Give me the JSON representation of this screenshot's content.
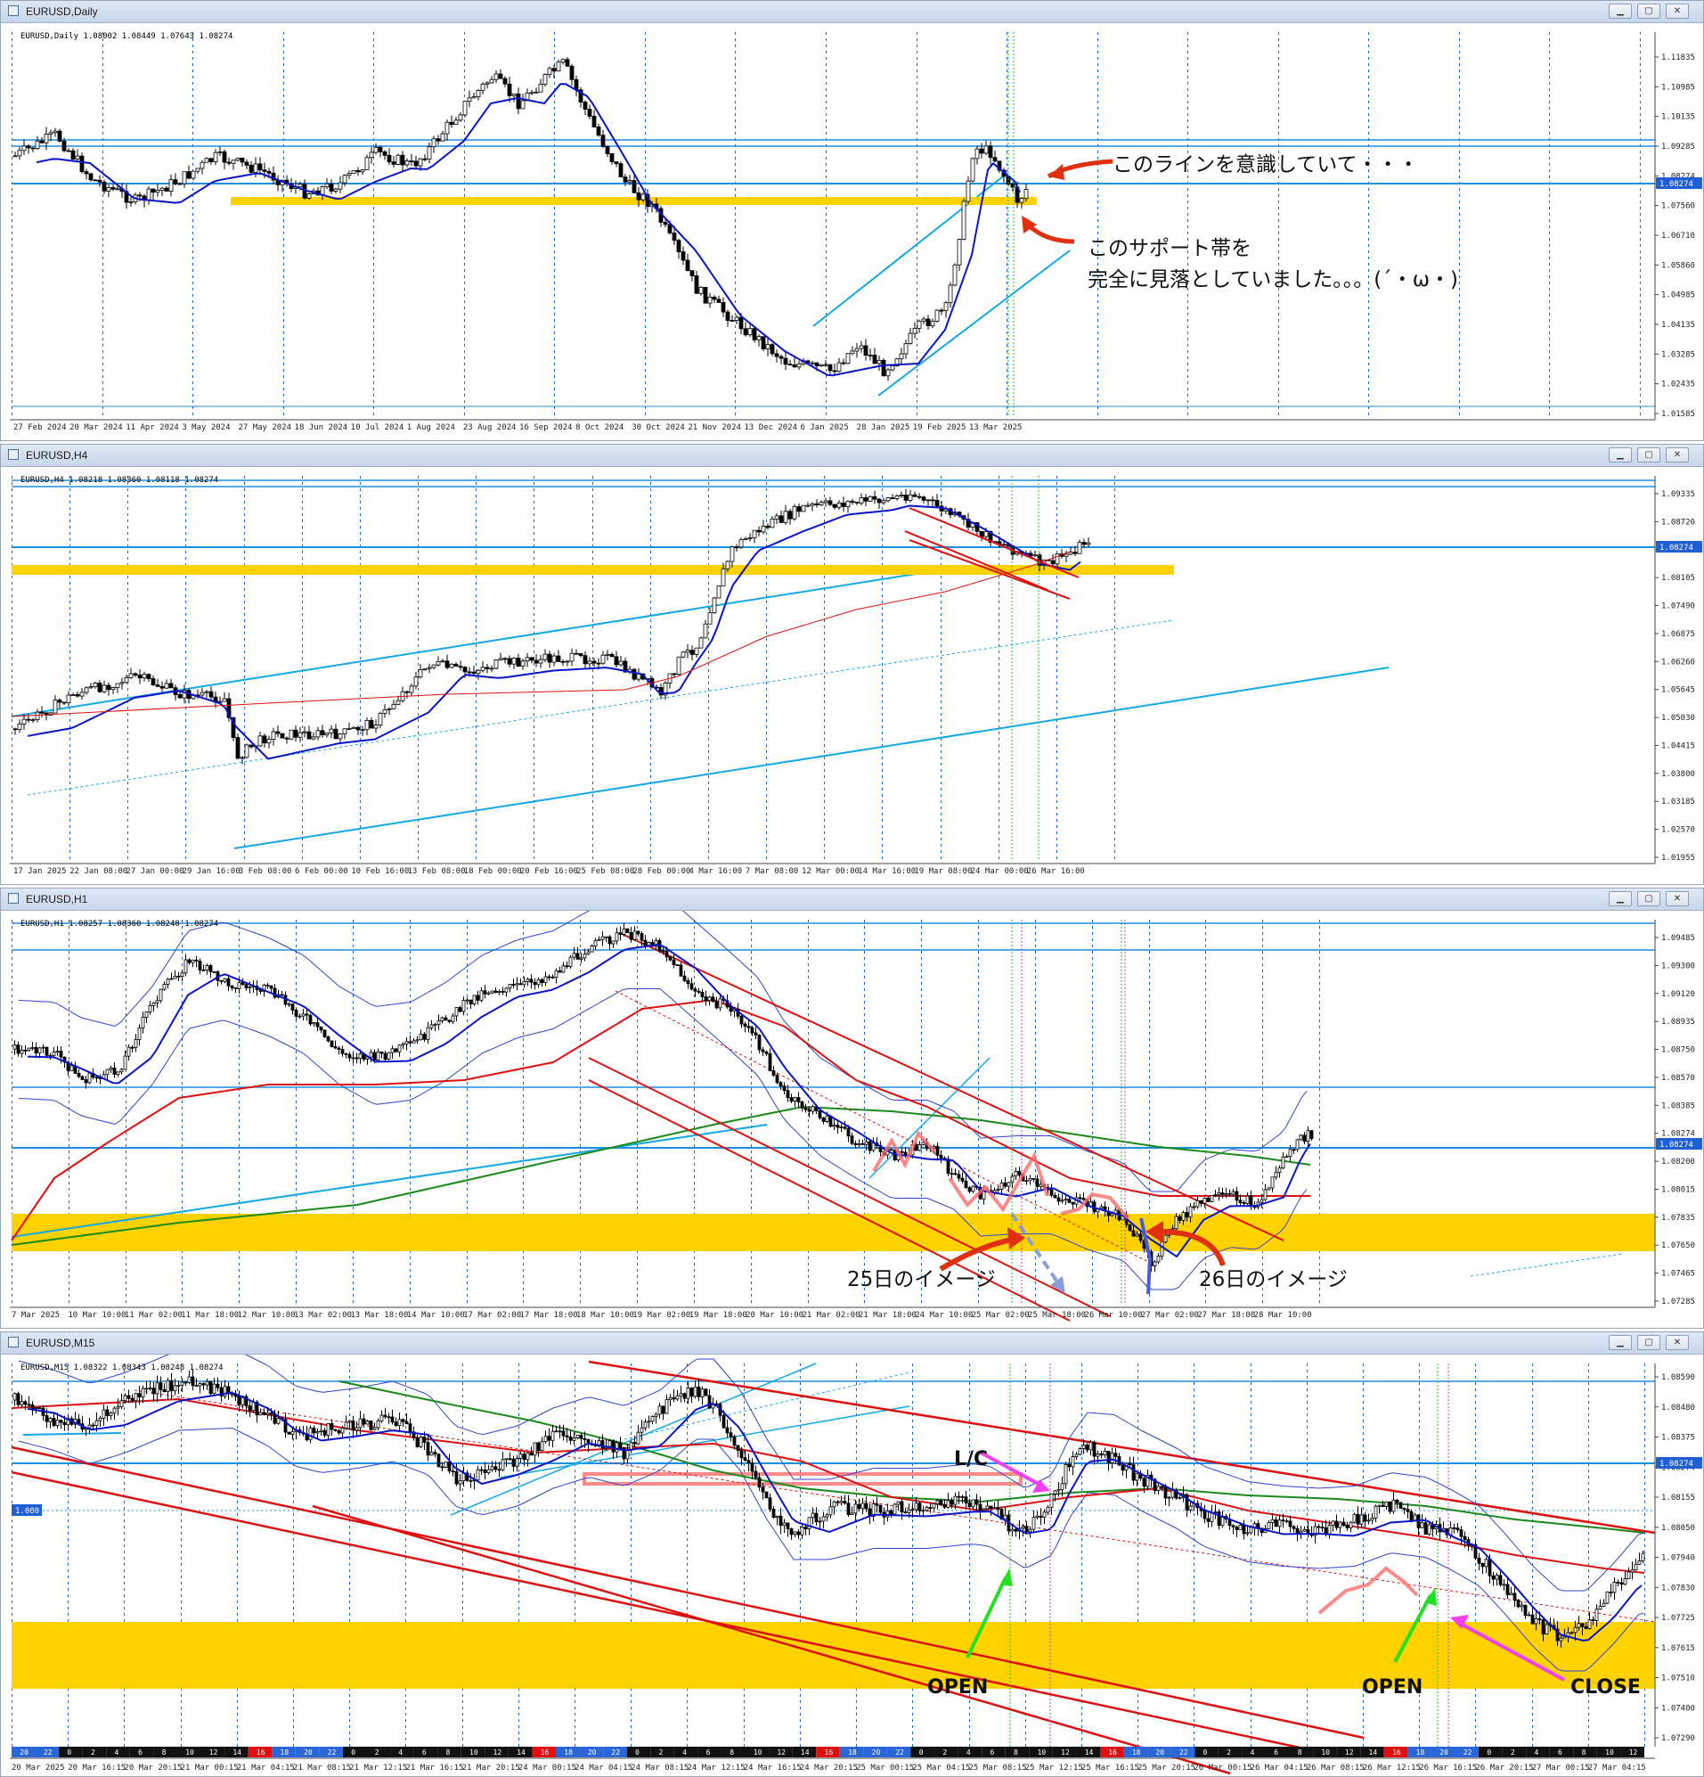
{
  "colors": {
    "bg": "#ffffff",
    "grid": "#1f5fd6",
    "candle": "#000000",
    "ma_blue": "#0a14c8",
    "ma_red": "#e01010",
    "ma_green": "#1a8a1a",
    "hline": "#1c8fe0",
    "zone": "#ffd200",
    "channel": "#13a8e6",
    "price_tag": "#1f5fd6"
  },
  "windows": [
    {
      "title": "EURUSD,Daily",
      "info": "EURUSD,Daily  1.08002 1.08449 1.07643 1.08274",
      "price_tag": "1.08274",
      "y_labels": [
        "1.11835",
        "1.10985",
        "1.10135",
        "1.09285",
        "1.08274",
        "1.07560",
        "1.06710",
        "1.05860",
        "1.04985",
        "1.04135",
        "1.03285",
        "1.02435",
        "1.01585"
      ],
      "x_labels": [
        "27 Feb 2024",
        "20 Mar 2024",
        "11 Apr 2024",
        "3 May 2024",
        "27 May 2024",
        "18 Jun 2024",
        "10 Jul 2024",
        "1 Aug 2024",
        "23 Aug 2024",
        "16 Sep 2024",
        "8 Oct 2024",
        "30 Oct 2024",
        "21 Nov 2024",
        "13 Dec 2024",
        "6 Jan 2025",
        "28 Jan 2025",
        "19 Feb 2025",
        "13 Mar 2025"
      ],
      "annotations": {
        "line1": "このラインを意識していて・・・",
        "line2": "このサポート帯を",
        "line3": "完全に見落としていました。。。(´・ω・)"
      }
    },
    {
      "title": "EURUSD,H4",
      "info": "EURUSD,H4  1.08218 1.08360 1.08118 1.08274",
      "price_tag": "1.08274",
      "y_labels": [
        "1.09335",
        "1.08720",
        "1.08274",
        "1.08105",
        "1.07490",
        "1.06875",
        "1.06260",
        "1.05645",
        "1.05030",
        "1.04415",
        "1.03800",
        "1.03185",
        "1.02570",
        "1.01955"
      ],
      "x_labels": [
        "17 Jan 2025",
        "22 Jan 08:00",
        "27 Jan 00:00",
        "29 Jan 16:00",
        "3 Feb 08:00",
        "6 Feb 00:00",
        "10 Feb 16:00",
        "13 Feb 08:00",
        "18 Feb 00:00",
        "20 Feb 16:00",
        "25 Feb 08:00",
        "28 Feb 00:00",
        "4 Mar 16:00",
        "7 Mar 08:00",
        "12 Mar 00:00",
        "14 Mar 16:00",
        "19 Mar 08:00",
        "24 Mar 00:00",
        "26 Mar 16:00"
      ]
    },
    {
      "title": "EURUSD,H1",
      "info": "EURUSD,H1  1.08257 1.08360 1.08248 1.08274",
      "price_tag": "1.08274",
      "y_labels": [
        "1.09485",
        "1.09300",
        "1.09120",
        "1.08935",
        "1.08750",
        "1.08570",
        "1.08385",
        "1.08274",
        "1.08200",
        "1.08015",
        "1.07835",
        "1.07650",
        "1.07465",
        "1.07285"
      ],
      "x_labels": [
        "7 Mar 2025",
        "10 Mar 10:00",
        "11 Mar 02:00",
        "11 Mar 18:00",
        "12 Mar 10:00",
        "13 Mar 02:00",
        "13 Mar 18:00",
        "14 Mar 10:00",
        "17 Mar 02:00",
        "17 Mar 18:00",
        "18 Mar 10:00",
        "19 Mar 02:00",
        "19 Mar 18:00",
        "20 Mar 10:00",
        "21 Mar 02:00",
        "21 Mar 18:00",
        "24 Mar 10:00",
        "25 Mar 02:00",
        "25 Mar 18:00",
        "26 Mar 10:00",
        "27 Mar 02:00",
        "27 Mar 18:00",
        "28 Mar 10:00"
      ],
      "annotations": {
        "label25": "25日のイメージ",
        "label26": "26日のイメージ"
      }
    },
    {
      "title": "EURUSD,M15",
      "info": "EURUSD,M15  1.08322 1.08343 1.08248 1.08274",
      "price_tag": "1.08274",
      "left_tag": "1.080",
      "y_labels": [
        "1.08590",
        "1.08480",
        "1.08375",
        "1.08274",
        "1.08155",
        "1.08050",
        "1.07940",
        "1.07830",
        "1.07725",
        "1.07615",
        "1.07510",
        "1.07400",
        "1.07290"
      ],
      "x_labels": [
        "20 Mar 2025",
        "20 Mar 16:15",
        "20 Mar 20:15",
        "21 Mar 00:15",
        "21 Mar 04:15",
        "21 Mar 08:15",
        "21 Mar 12:15",
        "21 Mar 16:15",
        "21 Mar 20:15",
        "24 Mar 00:15",
        "24 Mar 04:15",
        "24 Mar 08:15",
        "24 Mar 12:15",
        "24 Mar 16:15",
        "24 Mar 20:15",
        "25 Mar 00:15",
        "25 Mar 04:15",
        "25 Mar 08:15",
        "25 Mar 12:15",
        "25 Mar 16:15",
        "25 Mar 20:15",
        "26 Mar 00:15",
        "26 Mar 04:15",
        "26 Mar 08:15",
        "26 Mar 12:15",
        "26 Mar 16:15",
        "26 Mar 20:15",
        "27 Mar 00:15",
        "27 Mar 04:15"
      ],
      "hours": [
        "20",
        "22",
        "0",
        "2",
        "4",
        "6",
        "8",
        "10",
        "12",
        "14",
        "16",
        "18",
        "20",
        "22",
        "0",
        "2",
        "4",
        "6",
        "8",
        "10",
        "12",
        "14",
        "16",
        "18",
        "20",
        "22",
        "0",
        "2",
        "4",
        "6",
        "8",
        "10",
        "12",
        "14",
        "16",
        "18",
        "20",
        "22",
        "0",
        "2",
        "4",
        "6",
        "8",
        "10",
        "12",
        "14",
        "16",
        "18",
        "20",
        "22",
        "0",
        "2",
        "4",
        "6",
        "8",
        "10",
        "12",
        "14",
        "16",
        "18",
        "20",
        "22",
        "0",
        "2",
        "4",
        "6",
        "8",
        "10",
        "12"
      ],
      "annotations": {
        "lc": "L/C",
        "open1": "OPEN",
        "open2": "OPEN",
        "close": "CLOSE"
      }
    }
  ]
}
